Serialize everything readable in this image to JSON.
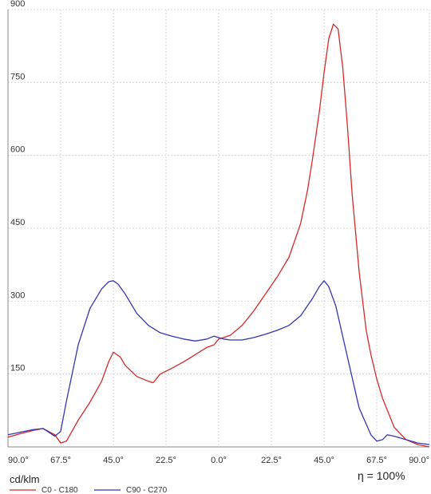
{
  "chart_data": {
    "type": "line",
    "title": "",
    "xlabel": "",
    "ylabel": "",
    "unit_label": "cd/klm",
    "efficiency_label": "η = 100%",
    "x_ticks": [
      "90.0°",
      "67.5°",
      "45.0°",
      "22.5°",
      "0.0°",
      "22.5°",
      "45.0°",
      "67.5°",
      "90.0°"
    ],
    "x_tick_values": [
      -90,
      -67.5,
      -45,
      -22.5,
      0,
      22.5,
      45,
      67.5,
      90
    ],
    "xlim": [
      -90,
      90
    ],
    "y_ticks": [
      150,
      300,
      450,
      600,
      750,
      900
    ],
    "ylim": [
      0,
      900
    ],
    "grid": true,
    "legend_position": "bottom-left",
    "series": [
      {
        "name": "C0 - C180",
        "color": "#d42a2a",
        "x": [
          -90,
          -85,
          -80,
          -75,
          -70,
          -67.5,
          -65,
          -60,
          -55,
          -50,
          -47,
          -45,
          -42,
          -40,
          -35,
          -30,
          -28,
          -25,
          -20,
          -15,
          -10,
          -5,
          -2,
          0,
          2,
          5,
          10,
          15,
          20,
          25,
          30,
          35,
          38,
          40,
          43,
          45,
          47,
          49,
          51,
          53,
          55,
          57,
          60,
          63,
          65,
          67.5,
          70,
          75,
          80,
          85,
          90
        ],
        "y": [
          20,
          27,
          33,
          38,
          25,
          8,
          12,
          55,
          92,
          135,
          175,
          195,
          185,
          168,
          145,
          135,
          132,
          150,
          162,
          175,
          190,
          205,
          210,
          222,
          225,
          230,
          250,
          280,
          315,
          350,
          390,
          460,
          530,
          590,
          690,
          770,
          840,
          870,
          860,
          780,
          660,
          520,
          360,
          240,
          190,
          140,
          100,
          40,
          15,
          5,
          0
        ]
      },
      {
        "name": "C90 - C270",
        "color": "#3535b4",
        "x": [
          -90,
          -85,
          -80,
          -75,
          -70,
          -67.5,
          -65,
          -60,
          -55,
          -50,
          -47,
          -45,
          -43,
          -40,
          -35,
          -30,
          -25,
          -20,
          -15,
          -10,
          -5,
          -2,
          0,
          2,
          5,
          10,
          15,
          20,
          25,
          30,
          35,
          40,
          43,
          45,
          47,
          50,
          55,
          60,
          65,
          67.5,
          70,
          72,
          75,
          80,
          85,
          90
        ],
        "y": [
          25,
          30,
          35,
          38,
          22,
          32,
          95,
          210,
          285,
          325,
          340,
          342,
          335,
          315,
          275,
          250,
          235,
          228,
          222,
          218,
          222,
          228,
          225,
          222,
          220,
          220,
          225,
          232,
          240,
          250,
          270,
          305,
          330,
          342,
          330,
          290,
          185,
          80,
          25,
          12,
          15,
          25,
          22,
          15,
          8,
          5
        ]
      }
    ]
  }
}
